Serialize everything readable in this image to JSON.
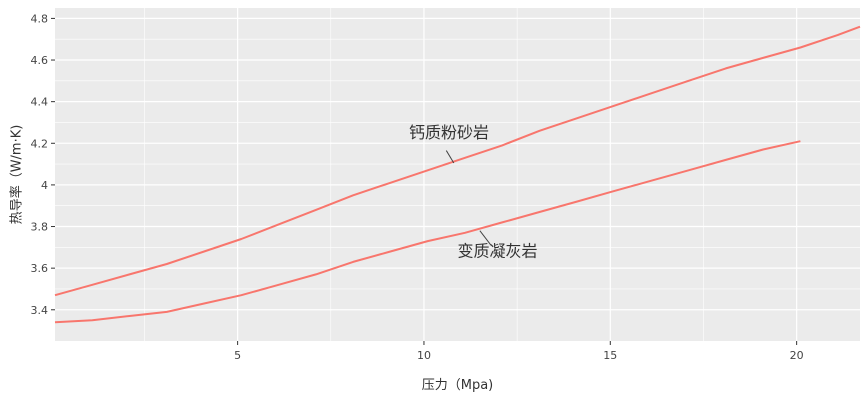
{
  "chart_data": {
    "type": "line",
    "xlabel": "压力（Mpa)",
    "ylabel": "热导率（W/m·K)",
    "xlim": [
      0.1,
      21.7
    ],
    "ylim": [
      3.25,
      4.85
    ],
    "xticks": [
      5,
      10,
      15,
      20
    ],
    "yticks": [
      3.4,
      3.6,
      3.8,
      4,
      4.2,
      4.4,
      4.6,
      4.8
    ],
    "ytick_labels": [
      "3.4",
      "3.6",
      "3.8",
      "4",
      "4.2",
      "4.4",
      "4.6",
      "4.8"
    ],
    "grid": true,
    "legend": "none",
    "colors": {
      "line": "#f8766d",
      "panel": "#ebebeb",
      "grid": "#ffffff"
    },
    "series": [
      {
        "x": [
          0.1,
          1.1,
          2.1,
          3.1,
          4.1,
          5.1,
          6.1,
          7.1,
          8.1,
          9.1,
          10.1,
          11.1,
          12.1,
          13.1,
          14.1,
          15.1,
          16.1,
          17.1,
          18.1,
          19.1,
          20.1,
          21.1,
          21.7
        ],
        "y": [
          3.47,
          3.52,
          3.57,
          3.62,
          3.68,
          3.74,
          3.81,
          3.88,
          3.95,
          4.01,
          4.07,
          4.13,
          4.19,
          4.26,
          4.32,
          4.38,
          4.44,
          4.5,
          4.56,
          4.61,
          4.66,
          4.72,
          4.76
        ]
      },
      {
        "x": [
          0.1,
          1.1,
          2.1,
          3.1,
          4.1,
          5.1,
          6.1,
          7.1,
          8.1,
          9.1,
          10.1,
          11.1,
          12.1,
          13.1,
          14.1,
          15.1,
          16.1,
          17.1,
          18.1,
          19.1,
          20.1
        ],
        "y": [
          3.34,
          3.35,
          3.37,
          3.39,
          3.43,
          3.47,
          3.52,
          3.57,
          3.63,
          3.68,
          3.73,
          3.77,
          3.82,
          3.87,
          3.92,
          3.97,
          4.02,
          4.07,
          4.12,
          4.17,
          4.21
        ]
      }
    ],
    "annotations": [
      {
        "text": "钙质粉砂岩",
        "label_x": 9.6,
        "label_y": 4.225,
        "line_from": [
          10.6,
          4.165
        ],
        "line_to": [
          10.8,
          4.105
        ]
      },
      {
        "text": "变质凝灰岩",
        "label_x": 10.9,
        "label_y": 3.655,
        "line_from": [
          11.8,
          3.71
        ],
        "line_to": [
          11.5,
          3.78
        ]
      }
    ]
  }
}
